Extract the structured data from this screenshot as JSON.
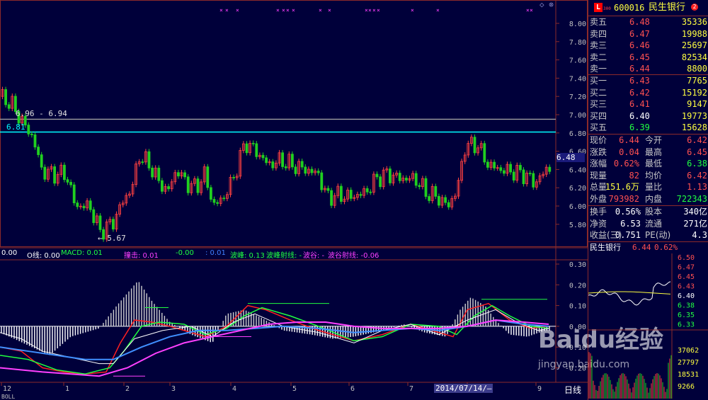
{
  "stock": {
    "code": "600016",
    "name": "民生银行",
    "badge_letter": "L",
    "badge_sub": "300"
  },
  "orderbook": {
    "asks": [
      {
        "label": "卖五",
        "price": "6.48",
        "vol": "35336"
      },
      {
        "label": "卖四",
        "price": "6.47",
        "vol": "19988"
      },
      {
        "label": "卖三",
        "price": "6.46",
        "vol": "25697"
      },
      {
        "label": "卖二",
        "price": "6.45",
        "vol": "82534"
      },
      {
        "label": "卖一",
        "price": "6.44",
        "vol": "8800"
      }
    ],
    "bids": [
      {
        "label": "买一",
        "price": "6.43",
        "vol": "7765"
      },
      {
        "label": "买二",
        "price": "6.42",
        "vol": "15192"
      },
      {
        "label": "买三",
        "price": "6.41",
        "vol": "9147"
      },
      {
        "label": "买四",
        "price": "6.40",
        "vol": "19773"
      },
      {
        "label": "买五",
        "price": "6.39",
        "vol": "15628"
      }
    ]
  },
  "quote": [
    {
      "l1": "现价",
      "v1": "6.44",
      "l2": "今开",
      "v2": "6.42"
    },
    {
      "l1": "涨跌",
      "v1": "0.04",
      "l2": "最高",
      "v2": "6.45"
    },
    {
      "l1": "涨幅",
      "v1": "0.62%",
      "l2": "最低",
      "v2": "6.38"
    },
    {
      "l1": "现量",
      "v1": "82",
      "l2": "均价",
      "v2": "6.42"
    },
    {
      "l1": "总量",
      "v1": "151.6万",
      "l2": "量比",
      "v2": "1.13"
    },
    {
      "l1": "外盘",
      "v1": "793982",
      "l2": "内盘",
      "v2": "722343"
    }
  ],
  "fundamentals": [
    {
      "l1": "换手",
      "v1": "0.56%",
      "l2": "股本",
      "v2": "340亿"
    },
    {
      "l1": "净资",
      "v1": "6.53",
      "l2": "流通",
      "v2": "271亿"
    },
    {
      "l1": "收益(三)",
      "v1": "0.751",
      "l2": "PE(动)",
      "v2": "4.3"
    }
  ],
  "mini": {
    "name": "民生银行",
    "price": "6.44",
    "change": "0.62%",
    "price_ticks": [
      "6.50",
      "6.47",
      "6.45",
      "6.43",
      "6.40",
      "6.38",
      "6.35",
      "6.33"
    ],
    "vol_ticks": [
      "37062",
      "27797",
      "18531",
      "9266"
    ]
  },
  "main_chart": {
    "y_ticks": [
      "8.00",
      "7.80",
      "7.60",
      "7.40",
      "7.20",
      "7.00",
      "6.80",
      "6.60",
      "6.40",
      "6.20",
      "6.00",
      "5.80"
    ],
    "range_label": "6.96 - 6.94",
    "support_label": "6.81",
    "low_label": "5.67",
    "last_price_label": "6.48"
  },
  "indicator": {
    "legend": [
      {
        "text": "0.00",
        "color": "#ffffff"
      },
      {
        "text": "O线: 0.00",
        "color": "#ffffff"
      },
      {
        "text": "MACD: 0.01",
        "color": "#20ff40"
      },
      {
        "text": "撞击: 0.01",
        "color": "#ff40ff"
      },
      {
        "text": "-0.00",
        "color": "#20ff40"
      },
      {
        "text": ": 0.01",
        "color": "#4080ff"
      },
      {
        "text": "波峰: 0.13",
        "color": "#20ff40"
      },
      {
        "text": "波峰射线: -",
        "color": "#20ff40"
      },
      {
        "text": "波谷: -",
        "color": "#ff40ff"
      },
      {
        "text": "波谷射线: -0.06",
        "color": "#ff40ff"
      }
    ],
    "y_ticks": [
      "0.30",
      "0.20",
      "0.10",
      "0.00",
      "-0.10",
      "-0.20"
    ]
  },
  "time_axis": {
    "labels": [
      "12",
      "1",
      "2",
      "3",
      "4",
      "5",
      "6",
      "7",
      "8",
      "9"
    ],
    "cursor_date": "2014/07/14/—",
    "period": "日线",
    "bottom_tab": "BOLL"
  },
  "watermark": {
    "brand": "Baidu经验",
    "url": "jingyan.baidu.com"
  },
  "colors": {
    "up": "#ff4040",
    "down": "#20d020",
    "bg": "#00003a",
    "grid": "#8b2a2a",
    "cyan_line": "#00ffff"
  }
}
